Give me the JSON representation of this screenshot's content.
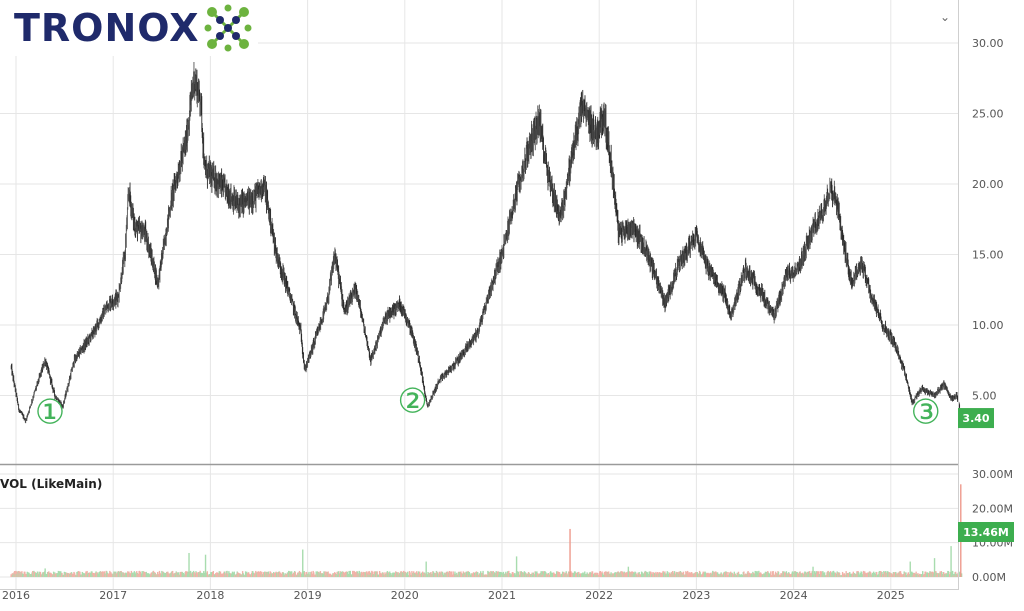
{
  "logo": {
    "text": "TRONOX"
  },
  "menu": {
    "chevron_icon": "chevron-down-icon"
  },
  "chart_data": [
    {
      "type": "candlestick",
      "title": "",
      "xlabel": "",
      "ylabel": "",
      "ylim": [
        0,
        31
      ],
      "y_ticks": [
        5,
        10,
        15,
        20,
        25,
        30
      ],
      "y_tick_labels": [
        "5.00",
        "10.00",
        "15.00",
        "20.00",
        "25.00",
        "30.00"
      ],
      "x_tick_labels": [
        "2016",
        "2017",
        "2018",
        "2019",
        "2020",
        "2021",
        "2022",
        "2023",
        "2024",
        "2025"
      ],
      "x_range_years": [
        2015.95,
        2025.73
      ],
      "grid": true,
      "last_price": 3.4,
      "last_price_label": "3.40",
      "price_path": [
        [
          2015.95,
          7.0
        ],
        [
          2016.03,
          4.0
        ],
        [
          2016.1,
          3.2
        ],
        [
          2016.18,
          5.0
        ],
        [
          2016.3,
          7.5
        ],
        [
          2016.4,
          5.0
        ],
        [
          2016.48,
          4.2
        ],
        [
          2016.6,
          7.5
        ],
        [
          2016.8,
          9.5
        ],
        [
          2016.95,
          11.5
        ],
        [
          2017.05,
          12.0
        ],
        [
          2017.12,
          15.0
        ],
        [
          2017.16,
          19.5
        ],
        [
          2017.22,
          17.0
        ],
        [
          2017.33,
          16.5
        ],
        [
          2017.46,
          13.0
        ],
        [
          2017.6,
          19.0
        ],
        [
          2017.75,
          23.0
        ],
        [
          2017.83,
          27.5
        ],
        [
          2017.9,
          26.0
        ],
        [
          2017.94,
          21.0
        ],
        [
          2018.1,
          20.0
        ],
        [
          2018.28,
          18.5
        ],
        [
          2018.45,
          19.0
        ],
        [
          2018.55,
          20.0
        ],
        [
          2018.68,
          15.0
        ],
        [
          2018.82,
          12.0
        ],
        [
          2018.93,
          9.5
        ],
        [
          2018.97,
          6.8
        ],
        [
          2019.08,
          9.0
        ],
        [
          2019.2,
          11.5
        ],
        [
          2019.28,
          15.0
        ],
        [
          2019.38,
          11.0
        ],
        [
          2019.5,
          12.5
        ],
        [
          2019.65,
          7.5
        ],
        [
          2019.8,
          10.5
        ],
        [
          2019.95,
          11.5
        ],
        [
          2020.05,
          10.0
        ],
        [
          2020.15,
          7.5
        ],
        [
          2020.23,
          4.2
        ],
        [
          2020.35,
          6.0
        ],
        [
          2020.55,
          7.5
        ],
        [
          2020.75,
          9.5
        ],
        [
          2020.9,
          13.0
        ],
        [
          2021.0,
          15.0
        ],
        [
          2021.1,
          18.0
        ],
        [
          2021.25,
          22.0
        ],
        [
          2021.38,
          24.5
        ],
        [
          2021.48,
          20.5
        ],
        [
          2021.6,
          17.5
        ],
        [
          2021.72,
          22.0
        ],
        [
          2021.82,
          25.5
        ],
        [
          2021.97,
          23.5
        ],
        [
          2022.05,
          25.0
        ],
        [
          2022.13,
          21.0
        ],
        [
          2022.2,
          16.5
        ],
        [
          2022.35,
          17.0
        ],
        [
          2022.5,
          15.0
        ],
        [
          2022.68,
          11.5
        ],
        [
          2022.8,
          14.0
        ],
        [
          2023.0,
          16.5
        ],
        [
          2023.12,
          14.0
        ],
        [
          2023.3,
          12.0
        ],
        [
          2023.35,
          10.5
        ],
        [
          2023.5,
          14.0
        ],
        [
          2023.65,
          12.5
        ],
        [
          2023.8,
          10.5
        ],
        [
          2023.92,
          13.5
        ],
        [
          2024.05,
          14.0
        ],
        [
          2024.18,
          16.5
        ],
        [
          2024.3,
          18.0
        ],
        [
          2024.38,
          20.0
        ],
        [
          2024.45,
          18.5
        ],
        [
          2024.52,
          15.5
        ],
        [
          2024.6,
          13.0
        ],
        [
          2024.7,
          14.5
        ],
        [
          2024.8,
          12.0
        ],
        [
          2024.92,
          10.0
        ],
        [
          2025.05,
          8.5
        ],
        [
          2025.15,
          6.5
        ],
        [
          2025.22,
          4.5
        ],
        [
          2025.32,
          5.5
        ],
        [
          2025.45,
          5.0
        ],
        [
          2025.55,
          5.8
        ],
        [
          2025.62,
          4.8
        ],
        [
          2025.68,
          5.0
        ],
        [
          2025.73,
          3.4
        ]
      ],
      "annotations": [
        {
          "label": "①",
          "x": 2016.35,
          "y": 3.0
        },
        {
          "label": "②",
          "x": 2020.08,
          "y": 3.8
        },
        {
          "label": "③",
          "x": 2025.36,
          "y": 3.0
        }
      ]
    },
    {
      "type": "bar",
      "title": "VOL (LikeMain)",
      "ylim": [
        0,
        30
      ],
      "y_ticks": [
        0,
        10,
        20,
        30
      ],
      "y_tick_labels": [
        "0.00M",
        "10.00M",
        "20.00M",
        "30.00M"
      ],
      "last_volume_label": "13.46M",
      "typical_volume_m": 1.2,
      "volume_spikes": [
        [
          2016.3,
          2.5
        ],
        [
          2017.78,
          7.0
        ],
        [
          2017.95,
          6.5
        ],
        [
          2018.95,
          8.0
        ],
        [
          2020.22,
          4.5
        ],
        [
          2021.15,
          6.0
        ],
        [
          2021.7,
          14.0
        ],
        [
          2022.3,
          3.0
        ],
        [
          2024.2,
          3.0
        ],
        [
          2025.2,
          4.5
        ],
        [
          2025.45,
          5.5
        ],
        [
          2025.62,
          9.0
        ],
        [
          2025.72,
          27.0
        ]
      ]
    }
  ]
}
